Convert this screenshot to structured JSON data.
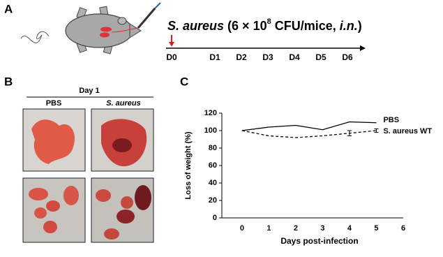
{
  "panel_a": {
    "label": "A",
    "title_parts": [
      "S. aureus",
      " (6 × 10",
      "8",
      " CFU/mice, ",
      "i.n.",
      ")"
    ],
    "timeline": [
      "D0",
      "D1",
      "D2",
      "D3",
      "D4",
      "D5",
      "D6"
    ]
  },
  "panel_b": {
    "label": "B",
    "header": "Day 1",
    "columns": [
      "PBS",
      "S. aureus"
    ]
  },
  "panel_c_label": "C",
  "chart_data": {
    "type": "line",
    "x_label": "Days post-infection",
    "y_label": "Loss of weight (%)",
    "x": [
      0,
      1,
      2,
      3,
      4,
      5
    ],
    "series": [
      {
        "name": "PBS",
        "color": "#000000",
        "style": "solid",
        "values": [
          100,
          104,
          106,
          101,
          110,
          109
        ]
      },
      {
        "name": "S. aureus WT",
        "color": "#000000",
        "style": "dashed",
        "values": [
          100,
          94,
          92,
          94,
          97,
          100
        ],
        "errors": [
          0,
          0,
          0,
          0,
          3,
          2
        ]
      }
    ],
    "xlim": [
      -0.75,
      6
    ],
    "xticks": [
      0,
      1,
      2,
      3,
      4,
      5,
      6
    ],
    "ylim": [
      0,
      120
    ],
    "yticks": [
      0,
      20,
      40,
      60,
      80,
      100,
      120
    ]
  }
}
